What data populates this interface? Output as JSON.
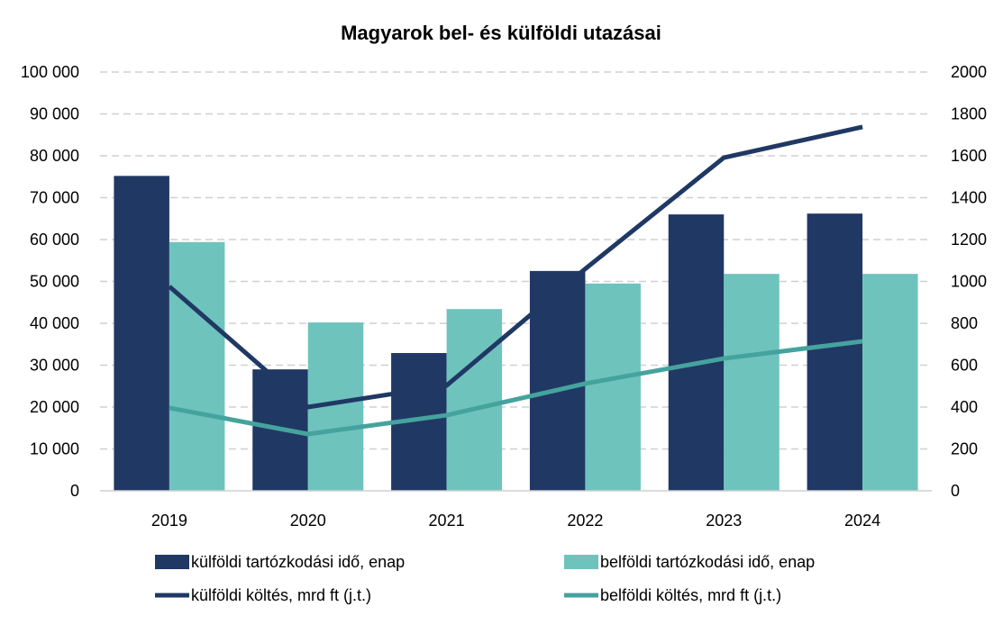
{
  "chart_data": {
    "type": "bar",
    "title": "Magyarok bel- és külföldi utazásai",
    "categories": [
      "2019",
      "2020",
      "2021",
      "2022",
      "2023",
      "2024"
    ],
    "left_axis": {
      "ylim": [
        0,
        100000
      ],
      "ticks": [
        "0",
        "10 000",
        "20 000",
        "30 000",
        "40 000",
        "50 000",
        "60 000",
        "70 000",
        "80 000",
        "90 000",
        "100 000"
      ]
    },
    "right_axis": {
      "ylim": [
        0,
        2000
      ],
      "ticks": [
        "0",
        "200",
        "400",
        "600",
        "800",
        "1000",
        "1200",
        "1400",
        "1600",
        "1800",
        "2000"
      ]
    },
    "grid": true,
    "legend_position": "bottom",
    "series": [
      {
        "name": "külföldi tartózkodási idő, enap",
        "kind": "bar",
        "axis": "left",
        "color": "#203864",
        "values": [
          75200,
          29000,
          32900,
          52500,
          66000,
          66200
        ]
      },
      {
        "name": "belföldi tartózkodási idő, enap",
        "kind": "bar",
        "axis": "left",
        "color": "#6fc3bd",
        "values": [
          59400,
          40200,
          43400,
          49500,
          51800,
          51800
        ]
      },
      {
        "name": "külföldi költés, mrd ft (j.t.)",
        "kind": "line",
        "axis": "right",
        "color": "#203864",
        "values": [
          976,
          400,
          503,
          1060,
          1591,
          1738
        ]
      },
      {
        "name": "belföldi költés, mrd ft (j.t.)",
        "kind": "line",
        "axis": "right",
        "color": "#45a39e",
        "values": [
          396,
          271,
          361,
          512,
          632,
          714
        ]
      }
    ]
  }
}
